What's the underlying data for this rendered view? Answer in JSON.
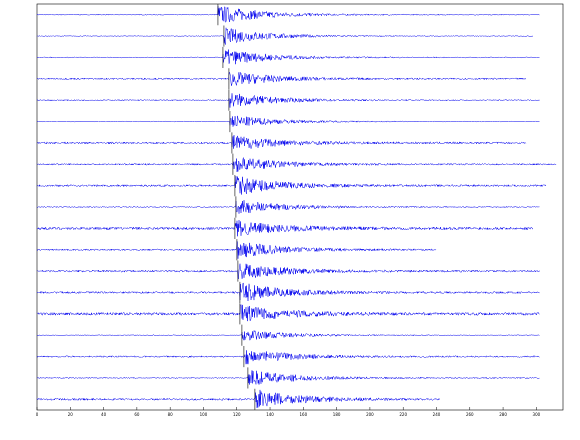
{
  "chart_data": {
    "type": "waveform",
    "color": "#0000ee",
    "xlim": [
      0,
      316
    ],
    "xticks": [
      0,
      20,
      40,
      60,
      80,
      100,
      120,
      140,
      160,
      180,
      200,
      220,
      240,
      260,
      280,
      300
    ],
    "series": [
      {
        "arrival": 108.7,
        "end": 302,
        "peak": 1.0,
        "noise": 0.12
      },
      {
        "arrival": 112.3,
        "end": 298,
        "peak": 0.9,
        "noise": 0.1
      },
      {
        "arrival": 111.7,
        "end": 302,
        "peak": 0.9,
        "noise": 0.12
      },
      {
        "arrival": 115.3,
        "end": 294,
        "peak": 0.8,
        "noise": 0.2
      },
      {
        "arrival": 115.3,
        "end": 302,
        "peak": 0.8,
        "noise": 0.15
      },
      {
        "arrival": 115.9,
        "end": 302,
        "peak": 0.7,
        "noise": 0.1
      },
      {
        "arrival": 117.1,
        "end": 294,
        "peak": 0.8,
        "noise": 0.25
      },
      {
        "arrival": 117.7,
        "end": 312,
        "peak": 0.8,
        "noise": 0.2
      },
      {
        "arrival": 118.9,
        "end": 306,
        "peak": 1.0,
        "noise": 0.25
      },
      {
        "arrival": 119.5,
        "end": 302,
        "peak": 0.8,
        "noise": 0.15
      },
      {
        "arrival": 118.9,
        "end": 298,
        "peak": 0.8,
        "noise": 0.35
      },
      {
        "arrival": 120.1,
        "end": 240,
        "peak": 0.9,
        "noise": 0.2
      },
      {
        "arrival": 120.7,
        "end": 302,
        "peak": 0.9,
        "noise": 0.25
      },
      {
        "arrival": 121.9,
        "end": 302,
        "peak": 1.0,
        "noise": 0.25
      },
      {
        "arrival": 121.9,
        "end": 302,
        "peak": 0.9,
        "noise": 0.35
      },
      {
        "arrival": 123.1,
        "end": 302,
        "peak": 0.6,
        "noise": 0.1
      },
      {
        "arrival": 124.3,
        "end": 302,
        "peak": 0.8,
        "noise": 0.2
      },
      {
        "arrival": 126.7,
        "end": 302,
        "peak": 0.9,
        "noise": 0.15
      },
      {
        "arrival": 130.9,
        "end": 242,
        "peak": 1.0,
        "noise": 0.25
      }
    ]
  }
}
